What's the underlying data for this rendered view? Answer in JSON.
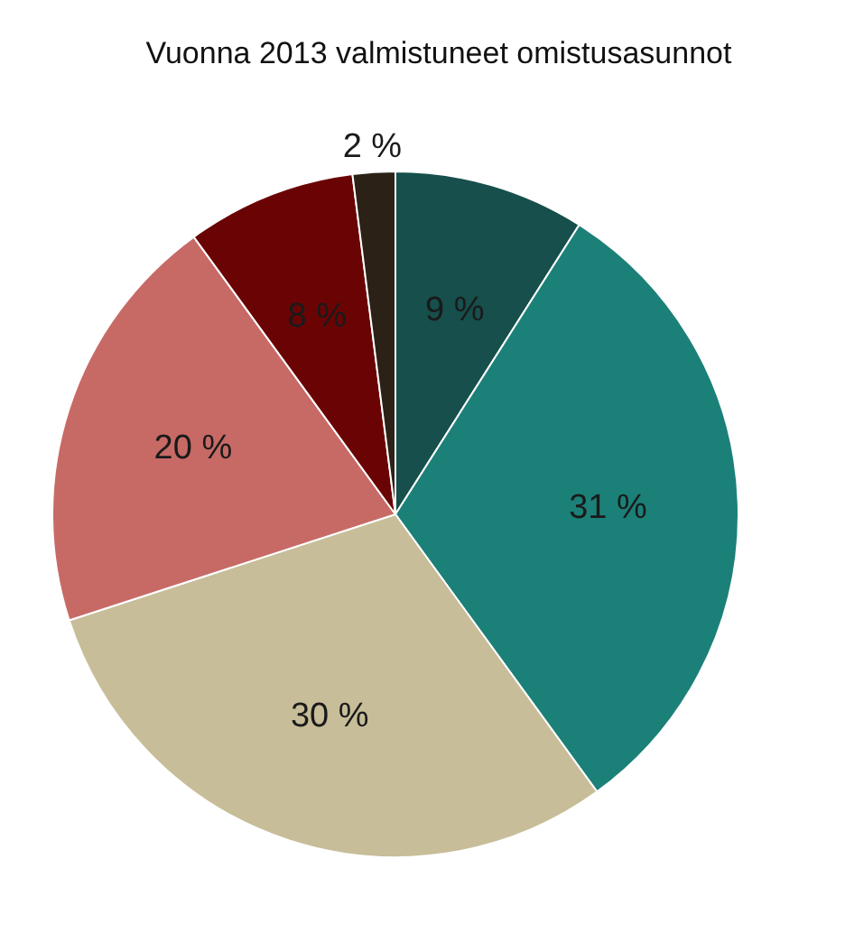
{
  "chart_data": {
    "type": "pie",
    "title": "Vuonna 2013 valmistuneet omistusasunnot",
    "categories": [
      null,
      null,
      null,
      null,
      null,
      null
    ],
    "values": [
      9,
      31,
      30,
      20,
      8,
      2
    ],
    "colors": [
      "#164f4b",
      "#1b8078",
      "#c7bd99",
      "#c76a66",
      "#6a0404",
      "#2b2116"
    ],
    "value_labels": [
      "9 %",
      "31 %",
      "30 %",
      "20 %",
      "8 %",
      "2 %"
    ]
  }
}
